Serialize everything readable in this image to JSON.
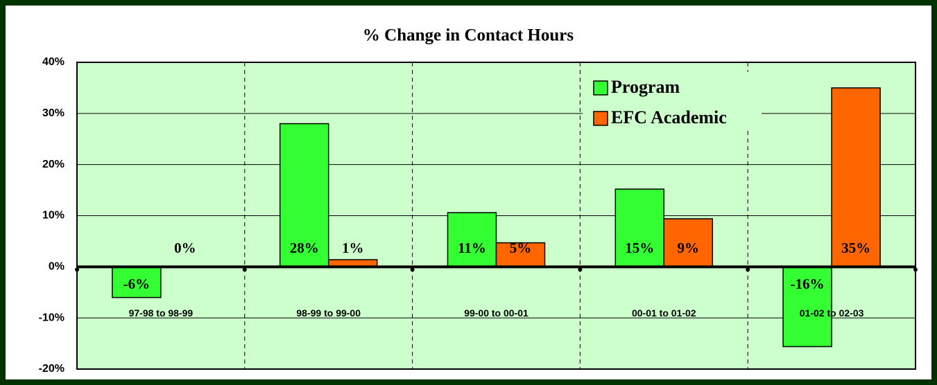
{
  "chart_data": {
    "type": "bar",
    "title": "% Change in Contact Hours",
    "categories": [
      "97-98 to 98-99",
      "98-99 to 99-00",
      "99-00 to 00-01",
      "00-01 to 01-02",
      "01-02 to 02-03"
    ],
    "series": [
      {
        "name": "Program",
        "color": "#33ff33",
        "values": [
          -6,
          28,
          10.6,
          15.2,
          -15.6
        ],
        "value_labels": [
          "-6%",
          "28%",
          "11%",
          "15%",
          "-16%"
        ]
      },
      {
        "name": "EFC Academic",
        "color": "#ff6600",
        "values": [
          0,
          1.4,
          4.7,
          9.4,
          35
        ],
        "value_labels": [
          "0%",
          "1%",
          "5%",
          "9%",
          "35%"
        ]
      }
    ],
    "ylim": [
      -20,
      40
    ],
    "yticks": [
      {
        "value": -20,
        "label": "-20%"
      },
      {
        "value": -10,
        "label": "-10%"
      },
      {
        "value": 0,
        "label": "0%"
      },
      {
        "value": 10,
        "label": "10%"
      },
      {
        "value": 20,
        "label": "20%"
      },
      {
        "value": 30,
        "label": "30%"
      },
      {
        "value": 40,
        "label": "40%"
      }
    ],
    "grid": true,
    "legend": "upper right"
  }
}
